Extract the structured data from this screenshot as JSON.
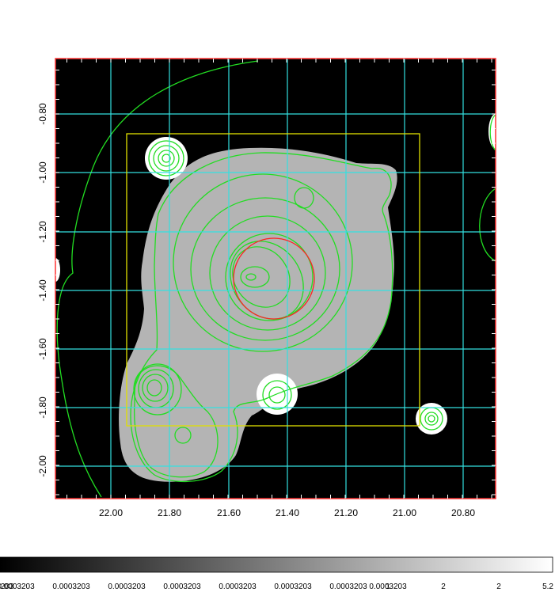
{
  "x_axis": {
    "ticks": [
      "22.00",
      "21.80",
      "21.60",
      "21.40",
      "21.20",
      "21.00",
      "20.80"
    ]
  },
  "y_axis": {
    "ticks": [
      "-0.80",
      "-1.00",
      "-1.20",
      "-1.40",
      "-1.60",
      "-1.80",
      "-2.00"
    ]
  },
  "colorbar": {
    "labels": [
      "0.0003203",
      "0.0003203",
      "0.0003203",
      "0.0003203",
      "0.0003203",
      "0.0003203",
      "0.0003203",
      "0.0003203",
      "0.0003203",
      "1",
      "2",
      "2",
      "5.2"
    ]
  },
  "colors": {
    "background": "#000000",
    "frame": "#ff3333",
    "grid": "#33e0e0",
    "contour": "#22dd22",
    "region_box": "#e0e000",
    "region_circle": "#ff2222",
    "emission": "#b4b4b4"
  }
}
